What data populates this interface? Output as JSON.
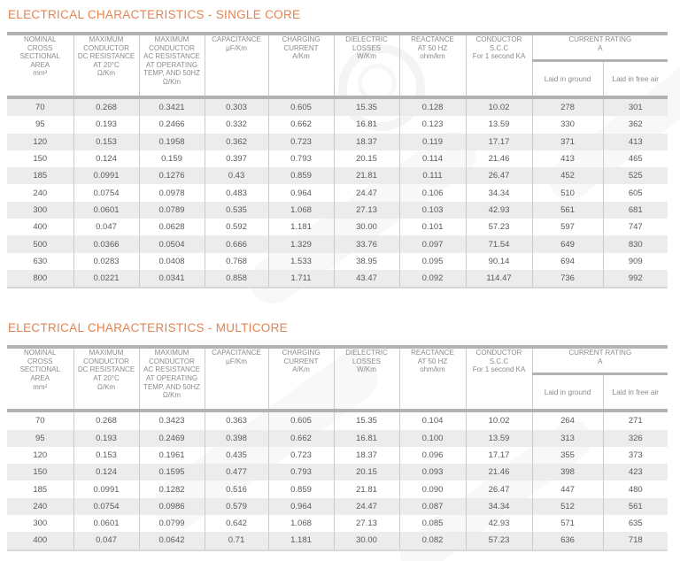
{
  "colors": {
    "accent_orange": "#e5834f",
    "thick_rule_gray": "#b2b2b2",
    "thin_rule_gray": "#cbcbcb",
    "row_stripe_gray": "#ececec",
    "header_text_gray": "#8b8b8b",
    "cell_text_gray": "#5a5a5a"
  },
  "sections": [
    {
      "title": "ELECTRICAL CHARACTERISTICS - SINGLE CORE",
      "headers": [
        "NOMINAL\nCROSS\nSECTIONAL\nAREA\nmm²",
        "MAXIMUM\nCONDUCTOR\nDC RESISTANCE\nAT 20°C\nΩ/Km",
        "MAXIMUM\nCONDUCTOR\nAC RESISTANCE\nAT OPERATING\nTEMP, AND 50HZ\nΩ/Km",
        "CAPACITANCE\nμF/Km",
        "CHARGING\nCURRENT\nA/Km",
        "DIELECTRIC\nLOSSES\nW/Km",
        "REACTANCE\nAT 50 HZ\nohm/km",
        "CONDUCTOR\nS.C.C\nFor 1 second KA"
      ],
      "current_rating": {
        "label": "CURRENT RATING\nA",
        "sub_columns": [
          "Laid in ground",
          "Laid in free air"
        ]
      },
      "rows": [
        [
          "70",
          "0.268",
          "0.3421",
          "0.303",
          "0.605",
          "15.35",
          "0.128",
          "10.02",
          "278",
          "301"
        ],
        [
          "95",
          "0.193",
          "0.2466",
          "0.332",
          "0.662",
          "16.81",
          "0.123",
          "13.59",
          "330",
          "362"
        ],
        [
          "120",
          "0.153",
          "0.1958",
          "0.362",
          "0.723",
          "18.37",
          "0.119",
          "17.17",
          "371",
          "413"
        ],
        [
          "150",
          "0.124",
          "0.159",
          "0.397",
          "0.793",
          "20.15",
          "0.114",
          "21.46",
          "413",
          "465"
        ],
        [
          "185",
          "0.0991",
          "0.1276",
          "0.43",
          "0.859",
          "21.81",
          "0.111",
          "26.47",
          "452",
          "525"
        ],
        [
          "240",
          "0.0754",
          "0.0978",
          "0.483",
          "0.964",
          "24.47",
          "0.106",
          "34.34",
          "510",
          "605"
        ],
        [
          "300",
          "0.0601",
          "0.0789",
          "0.535",
          "1.068",
          "27.13",
          "0.103",
          "42.93",
          "561",
          "681"
        ],
        [
          "400",
          "0.047",
          "0.0628",
          "0.592",
          "1.181",
          "30.00",
          "0.101",
          "57.23",
          "597",
          "747"
        ],
        [
          "500",
          "0.0366",
          "0.0504",
          "0.666",
          "1.329",
          "33.76",
          "0.097",
          "71.54",
          "649",
          "830"
        ],
        [
          "630",
          "0.0283",
          "0.0408",
          "0.768",
          "1.533",
          "38.95",
          "0.095",
          "90.14",
          "694",
          "909"
        ],
        [
          "800",
          "0.0221",
          "0.0341",
          "0.858",
          "1.711",
          "43.47",
          "0.092",
          "114.47",
          "736",
          "992"
        ]
      ]
    },
    {
      "title": "ELECTRICAL CHARACTERISTICS - MULTICORE",
      "headers": [
        "NOMINAL\nCROSS\nSECTIONAL\nAREA\nmm²",
        "MAXIMUM\nCONDUCTOR\nDC RESISTANCE\nAT 20°C\nΩ/Km",
        "MAXIMUM\nCONDUCTOR\nAC RESISTANCE\nAT OPERATING\nTEMP. AND 50HZ\nΩ/Km",
        "CAPACITANCE\nμF/Km",
        "CHARGING\nCURRENT\nA/Km",
        "DIELECTRIC\nLOSSES\nW/Km",
        "REACTANCE\nAT 50 HZ\nohm/km",
        "CONDUCTOR\nS.C.C\nFor 1 second KA"
      ],
      "current_rating": {
        "label": "CURRENT RATING\nA",
        "sub_columns": [
          "Laid in ground",
          "Laid in free air"
        ]
      },
      "rows": [
        [
          "70",
          "0.268",
          "0.3423",
          "0.363",
          "0.605",
          "15.35",
          "0.104",
          "10.02",
          "264",
          "271"
        ],
        [
          "95",
          "0.193",
          "0.2469",
          "0.398",
          "0.662",
          "16.81",
          "0.100",
          "13.59",
          "313",
          "326"
        ],
        [
          "120",
          "0.153",
          "0.1961",
          "0.435",
          "0.723",
          "18.37",
          "0.096",
          "17.17",
          "355",
          "373"
        ],
        [
          "150",
          "0.124",
          "0.1595",
          "0.477",
          "0.793",
          "20.15",
          "0.093",
          "21.46",
          "398",
          "423"
        ],
        [
          "185",
          "0.0991",
          "0.1282",
          "0.516",
          "0.859",
          "21.81",
          "0.090",
          "26.47",
          "447",
          "480"
        ],
        [
          "240",
          "0.0754",
          "0.0986",
          "0.579",
          "0.964",
          "24.47",
          "0.087",
          "34.34",
          "512",
          "561"
        ],
        [
          "300",
          "0.0601",
          "0.0799",
          "0.642",
          "1.068",
          "27.13",
          "0.085",
          "42.93",
          "571",
          "635"
        ],
        [
          "400",
          "0.047",
          "0.0642",
          "0.71",
          "1.181",
          "30.00",
          "0.082",
          "57.23",
          "636",
          "718"
        ]
      ]
    }
  ]
}
